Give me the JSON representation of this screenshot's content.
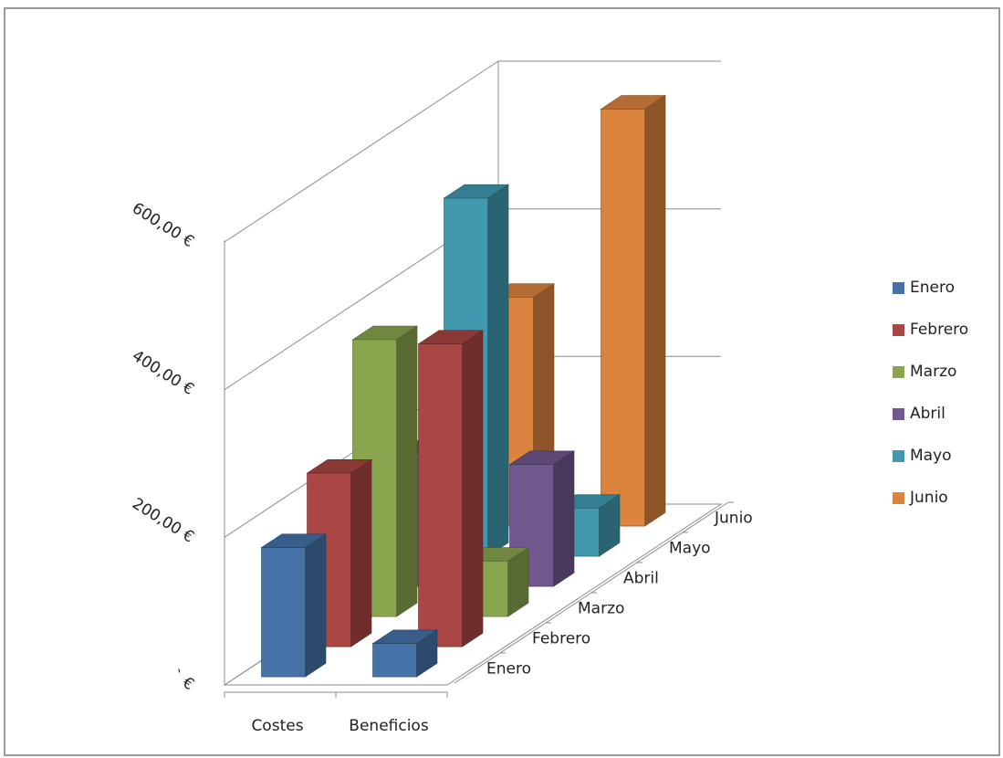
{
  "chart_data": {
    "type": "bar",
    "subtype": "3d-column",
    "title": "",
    "xlabel": "",
    "ylabel": "",
    "categories": [
      "Costes",
      "Beneficios"
    ],
    "depth_categories": [
      "Enero",
      "Febrero",
      "Marzo",
      "Abril",
      "Mayo",
      "Junio"
    ],
    "series": [
      {
        "name": "Enero",
        "color": "#4572a7",
        "values": [
          175,
          45
        ]
      },
      {
        "name": "Febrero",
        "color": "#aa4643",
        "values": [
          235,
          410
        ]
      },
      {
        "name": "Marzo",
        "color": "#89a54e",
        "values": [
          375,
          75
        ]
      },
      {
        "name": "Abril",
        "color": "#71588f",
        "values": [
          180,
          165
        ]
      },
      {
        "name": "Mayo",
        "color": "#4198af",
        "values": [
          485,
          65
        ]
      },
      {
        "name": "Junio",
        "color": "#db843d",
        "values": [
          310,
          565
        ]
      }
    ],
    "y_ticks": [
      "`  €",
      "200,00 €",
      "400,00 €",
      "600,00 €"
    ],
    "ylim": [
      0,
      600
    ],
    "gridlines": true,
    "legend_position": "right"
  }
}
